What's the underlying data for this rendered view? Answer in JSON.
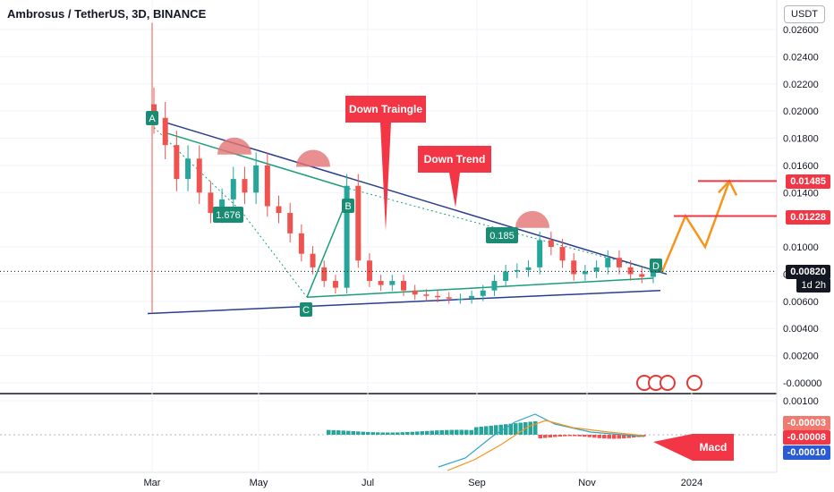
{
  "header": {
    "title": "Ambrosus / TetherUS, 3D, BINANCE",
    "currency": "USDT"
  },
  "colors": {
    "up": "#26a69a",
    "down": "#ef5350",
    "trendline": "#2a3d8f",
    "pattern": "#1a9e7a",
    "annotation_red": "#f23645",
    "forecast": "#f7941d",
    "macd": "#2fa4c9",
    "signal": "#f7941d",
    "hist_pos": "#26a69a",
    "hist_neg": "#ef5350"
  },
  "chart_data": {
    "type": "candlestick",
    "symbol": "Ambrosus / TetherUS",
    "interval": "3D",
    "exchange": "BINANCE",
    "y_axis_ticks": [
      "0.02600",
      "0.02400",
      "0.02200",
      "0.02000",
      "0.01800",
      "0.01600",
      "0.01400",
      "0.01000",
      "0.00800",
      "0.00600",
      "0.00400",
      "0.00200",
      "-0.00000"
    ],
    "ylim": [
      0,
      0.026
    ],
    "x_axis_ticks": [
      "Mar",
      "May",
      "Jul",
      "Sep",
      "Nov",
      "2024"
    ],
    "close_series": [
      {
        "date": "Mar",
        "value": 0.0195
      },
      {
        "date": "Mar",
        "value": 0.0175
      },
      {
        "date": "Mar",
        "value": 0.015
      },
      {
        "date": "Mar",
        "value": 0.0165
      },
      {
        "date": "Apr",
        "value": 0.014
      },
      {
        "date": "Apr",
        "value": 0.0125
      },
      {
        "date": "Apr",
        "value": 0.0135
      },
      {
        "date": "Apr",
        "value": 0.015
      },
      {
        "date": "Apr",
        "value": 0.014
      },
      {
        "date": "Apr",
        "value": 0.016
      },
      {
        "date": "Apr",
        "value": 0.013
      },
      {
        "date": "May",
        "value": 0.0125
      },
      {
        "date": "May",
        "value": 0.011
      },
      {
        "date": "May",
        "value": 0.0095
      },
      {
        "date": "May",
        "value": 0.0085
      },
      {
        "date": "May",
        "value": 0.0075
      },
      {
        "date": "Jun",
        "value": 0.007
      },
      {
        "date": "Jun",
        "value": 0.0145
      },
      {
        "date": "Jun",
        "value": 0.009
      },
      {
        "date": "Jun",
        "value": 0.0075
      },
      {
        "date": "Jun",
        "value": 0.0072
      },
      {
        "date": "Jun",
        "value": 0.0075
      },
      {
        "date": "Jul",
        "value": 0.0068
      },
      {
        "date": "Jul",
        "value": 0.0065
      },
      {
        "date": "Jul",
        "value": 0.0064
      },
      {
        "date": "Jul",
        "value": 0.0063
      },
      {
        "date": "Aug",
        "value": 0.0062
      },
      {
        "date": "Aug",
        "value": 0.0062
      },
      {
        "date": "Aug",
        "value": 0.0064
      },
      {
        "date": "Aug",
        "value": 0.0068
      },
      {
        "date": "Aug",
        "value": 0.0075
      },
      {
        "date": "Sep",
        "value": 0.0082
      },
      {
        "date": "Sep",
        "value": 0.0083
      },
      {
        "date": "Sep",
        "value": 0.0085
      },
      {
        "date": "Sep",
        "value": 0.0105
      },
      {
        "date": "Sep",
        "value": 0.01
      },
      {
        "date": "Oct",
        "value": 0.009
      },
      {
        "date": "Oct",
        "value": 0.008
      },
      {
        "date": "Oct",
        "value": 0.0082
      },
      {
        "date": "Oct",
        "value": 0.0085
      },
      {
        "date": "Nov",
        "value": 0.0092
      },
      {
        "date": "Nov",
        "value": 0.0085
      },
      {
        "date": "Nov",
        "value": 0.008
      },
      {
        "date": "Nov",
        "value": 0.0078
      },
      {
        "date": "Dec",
        "value": 0.0082
      }
    ],
    "current_price": "0.00820",
    "current_price_timer": "1d 2h",
    "targets": [
      "0.01228",
      "0.01485"
    ],
    "labels": {
      "point_a": "A",
      "point_b": "B",
      "point_c": "C",
      "point_d": "D",
      "drop_1": "1.676",
      "drop_2": "0.185",
      "down_triangle": "Down Traingle",
      "down_trend": "Down Trend",
      "macd": "Macd"
    },
    "macd_panel": {
      "y_axis_ticks": [
        "0.00100",
        "-0.00000"
      ],
      "values": [
        "-0.00003",
        "-0.00008",
        "-0.00010"
      ]
    }
  }
}
